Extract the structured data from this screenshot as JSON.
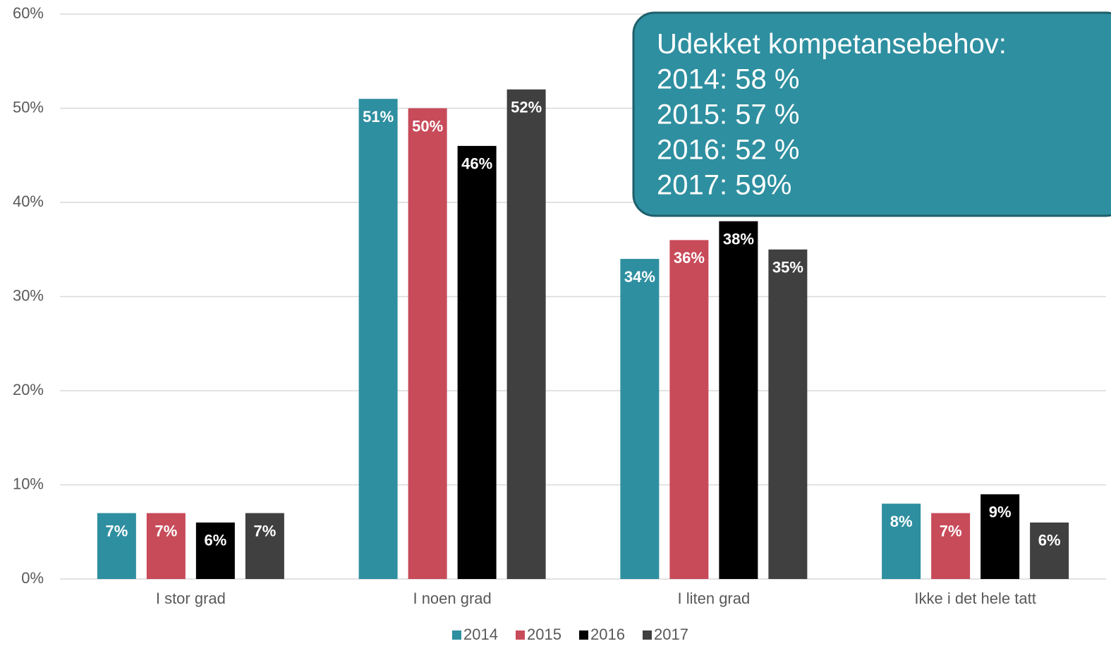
{
  "chart_data": {
    "type": "bar",
    "categories": [
      "I stor grad",
      "I noen grad",
      "I liten grad",
      "Ikke i det hele tatt"
    ],
    "series": [
      {
        "name": "2014",
        "color": "#2e8fa0",
        "values": [
          7,
          51,
          34,
          8
        ],
        "value_labels": [
          "7%",
          "51%",
          "34%",
          "8%"
        ]
      },
      {
        "name": "2015",
        "color": "#c84b5a",
        "values": [
          7,
          50,
          36,
          7
        ],
        "value_labels": [
          "7%",
          "50%",
          "36%",
          "7%"
        ]
      },
      {
        "name": "2016",
        "color": "#000000",
        "values": [
          6,
          46,
          38,
          9
        ],
        "value_labels": [
          "6%",
          "46%",
          "38%",
          "9%"
        ]
      },
      {
        "name": "2017",
        "color": "#404040",
        "values": [
          7,
          52,
          35,
          6
        ],
        "value_labels": [
          "7%",
          "52%",
          "35%",
          "6%"
        ]
      }
    ],
    "ylim": [
      0,
      60
    ],
    "yticks": [
      {
        "value": 0,
        "label": "0%"
      },
      {
        "value": 10,
        "label": "10%"
      },
      {
        "value": 20,
        "label": "20%"
      },
      {
        "value": 30,
        "label": "30%"
      },
      {
        "value": 40,
        "label": "40%"
      },
      {
        "value": 50,
        "label": "50%"
      },
      {
        "value": 60,
        "label": "60%"
      }
    ],
    "grid": true,
    "legend": "bottom",
    "annotation": [
      "Udekket kompetansebehov:",
      "2014: 58 %",
      "2015: 57 %",
      "2016: 52 %",
      "2017: 59%"
    ],
    "annotation_color": "#2e8fa0"
  }
}
